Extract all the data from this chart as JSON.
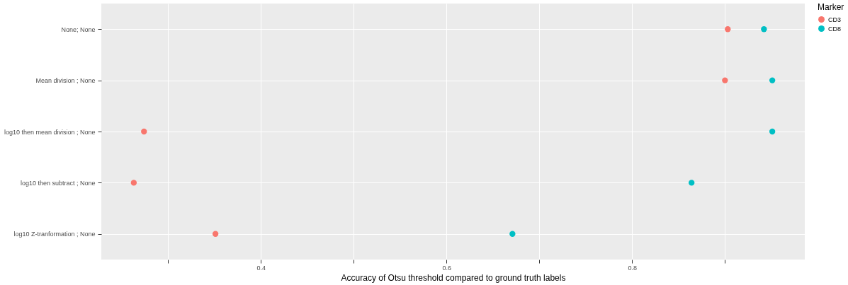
{
  "chart_data": {
    "type": "scatter",
    "xlabel": "Accuracy of Otsu threshold compared to ground truth labels",
    "legend_title": "Marker",
    "categories": [
      "None; None",
      "Mean division ; None",
      "log10 then mean division ; None",
      "log10 then subtract ; None",
      "log10 Z-tranformation ; None"
    ],
    "series": [
      {
        "name": "CD3",
        "color": "#f8766d",
        "values": [
          0.903,
          0.9,
          0.274,
          0.263,
          0.351
        ]
      },
      {
        "name": "CD8",
        "color": "#00bfc4",
        "values": [
          0.942,
          0.951,
          0.951,
          0.864,
          0.671
        ]
      }
    ],
    "orientation": "horizontal",
    "xlim": [
      0.228,
      0.986
    ],
    "xticks": [
      {
        "value": 0.3,
        "label": null
      },
      0.4,
      {
        "value": 0.5,
        "label": null
      },
      0.6,
      {
        "value": 0.7,
        "label": null
      },
      0.8,
      {
        "value": 0.9,
        "label": null
      }
    ],
    "grid": true,
    "legend": "right",
    "marker": "circle"
  }
}
